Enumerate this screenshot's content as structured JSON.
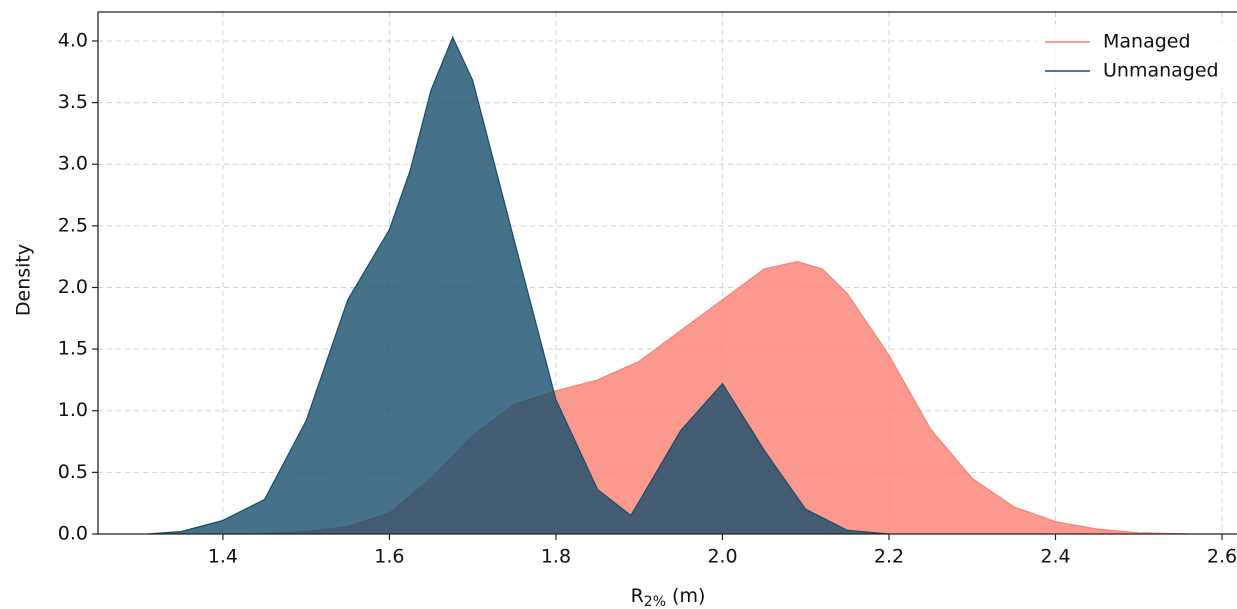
{
  "chart_data": {
    "type": "density",
    "x_label": {
      "main": "R",
      "sub": "2%",
      "rest": " (m)"
    },
    "y_label": "Density",
    "xlim": [
      1.25,
      2.618
    ],
    "ylim": [
      0,
      4.235
    ],
    "xticks": [
      1.4,
      1.6,
      1.8,
      {
        "value": 2,
        "label": "2.0"
      },
      2.2,
      2.4,
      2.6
    ],
    "yticks": [
      {
        "value": 0,
        "label": "0.0"
      },
      0.5,
      {
        "value": 1,
        "label": "1.0"
      },
      1.5,
      {
        "value": 2,
        "label": "2.0"
      },
      2.5,
      {
        "value": 3,
        "label": "3.0"
      },
      3.5,
      {
        "value": 4,
        "label": "4.0"
      }
    ],
    "grid": true,
    "legend": "upper right",
    "series": [
      {
        "name": "Managed",
        "color": "#fa8072",
        "x": [
          1.44,
          1.5,
          1.55,
          1.6,
          1.65,
          1.7,
          1.75,
          1.8,
          1.85,
          1.9,
          1.95,
          2.0,
          2.05,
          2.09,
          2.12,
          2.15,
          2.2,
          2.25,
          2.3,
          2.35,
          2.4,
          2.45,
          2.5,
          2.56
        ],
        "values": [
          0,
          0.02,
          0.06,
          0.17,
          0.45,
          0.8,
          1.05,
          1.16,
          1.25,
          1.4,
          1.65,
          1.9,
          2.15,
          2.21,
          2.15,
          1.95,
          1.45,
          0.85,
          0.45,
          0.22,
          0.1,
          0.04,
          0.01,
          0
        ]
      },
      {
        "name": "Unmanaged",
        "color": "#174e6b",
        "x": [
          1.31,
          1.35,
          1.4,
          1.45,
          1.5,
          1.55,
          1.6,
          1.625,
          1.65,
          1.676,
          1.7,
          1.75,
          1.8,
          1.85,
          1.89,
          1.95,
          2.0,
          2.05,
          2.1,
          2.15,
          2.2
        ],
        "values": [
          0,
          0.02,
          0.11,
          0.28,
          0.92,
          1.9,
          2.47,
          2.95,
          3.6,
          4.03,
          3.68,
          2.38,
          1.09,
          0.36,
          0.15,
          0.84,
          1.22,
          0.68,
          0.2,
          0.03,
          0
        ]
      }
    ]
  }
}
